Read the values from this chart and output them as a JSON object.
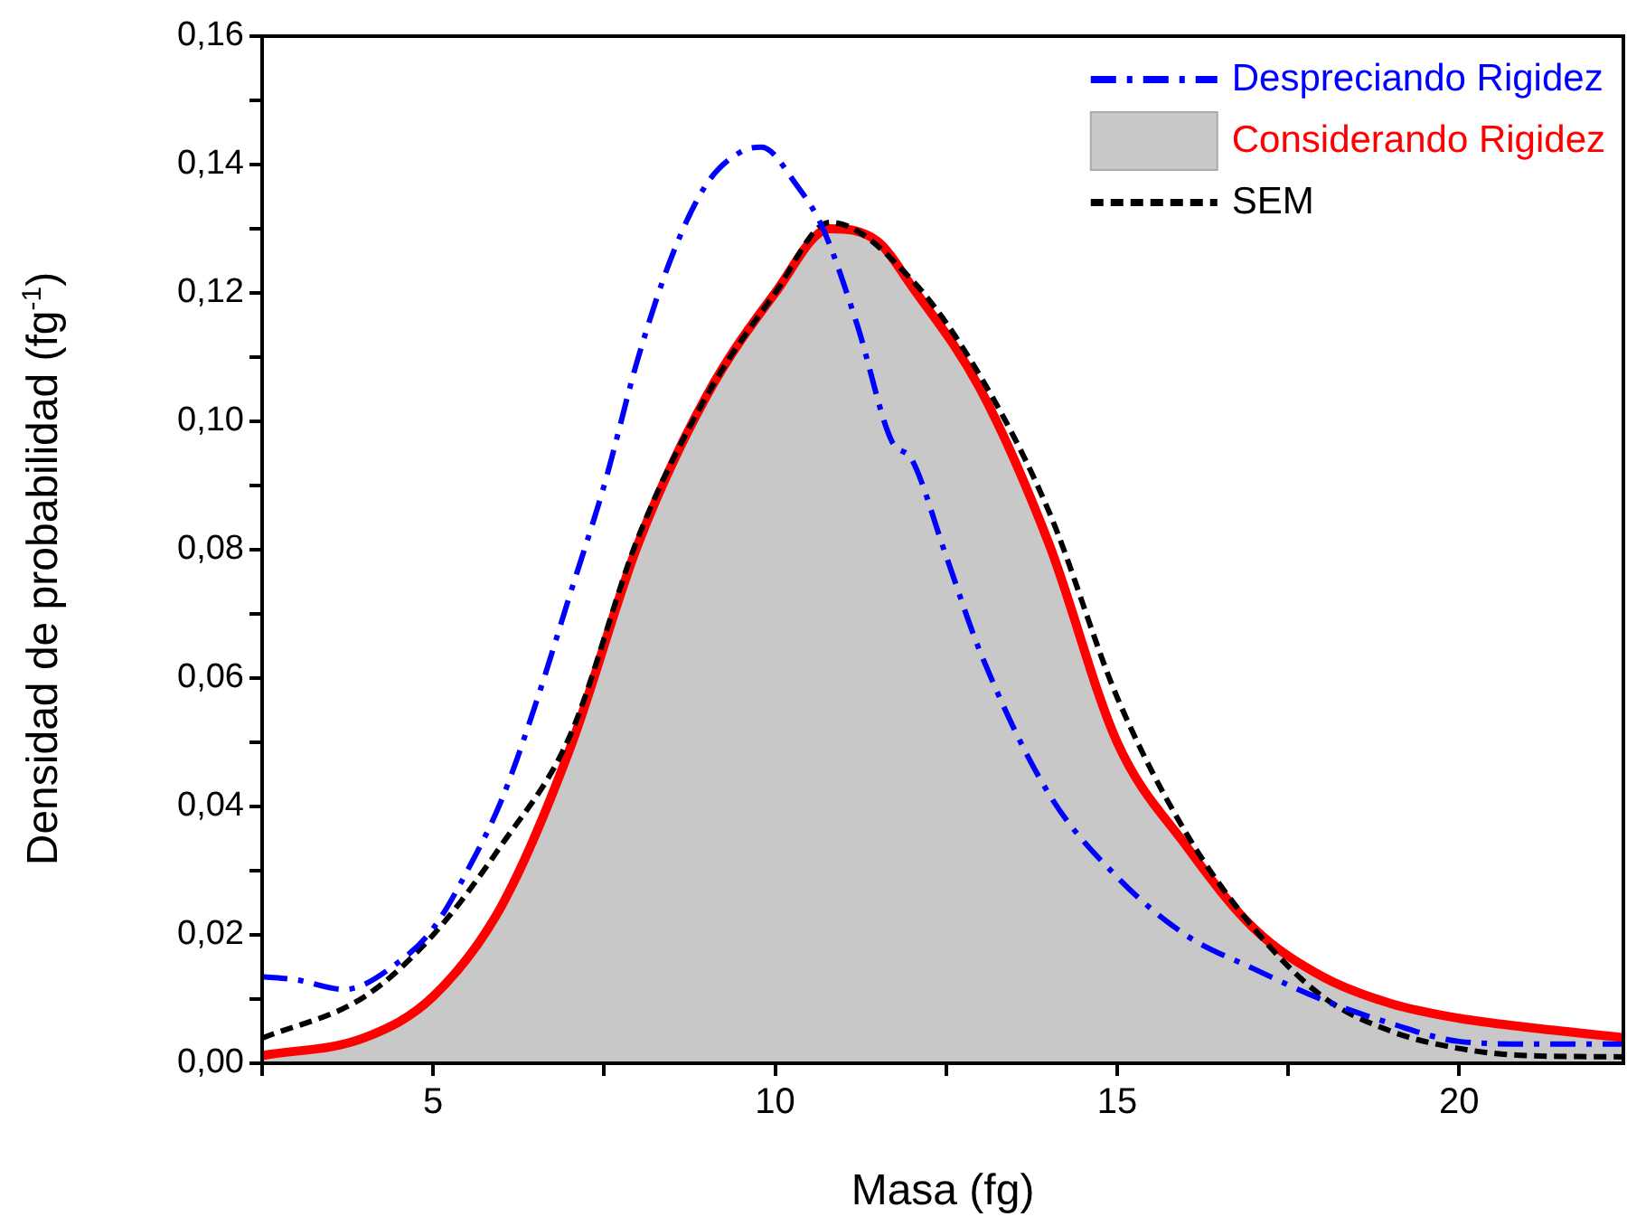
{
  "chart_data": {
    "type": "line",
    "xlabel": "Masa (fg)",
    "ylabel": "Densidad de probabilidad (fg$^{-1}$)",
    "legend": "top right",
    "xlim": [
      2.5,
      22.4
    ],
    "ylim": [
      0,
      0.16
    ],
    "xticks": [
      {
        "value": 2.5,
        "label": null
      },
      {
        "value": 5,
        "label": "5"
      },
      {
        "value": 7.5,
        "label": null
      },
      {
        "value": 10,
        "label": "10"
      },
      {
        "value": 12.5,
        "label": null
      },
      {
        "value": 15,
        "label": "15"
      },
      {
        "value": 17.5,
        "label": null
      },
      {
        "value": 20,
        "label": "20"
      }
    ],
    "yticks": [
      {
        "value": 0,
        "label": "0,00"
      },
      {
        "value": 0.01,
        "label": null
      },
      {
        "value": 0.02,
        "label": "0,02"
      },
      {
        "value": 0.03,
        "label": null
      },
      {
        "value": 0.04,
        "label": "0,04"
      },
      {
        "value": 0.05,
        "label": null
      },
      {
        "value": 0.06,
        "label": "0,06"
      },
      {
        "value": 0.07,
        "label": null
      },
      {
        "value": 0.08,
        "label": "0,08"
      },
      {
        "value": 0.09,
        "label": null
      },
      {
        "value": 0.1,
        "label": "0,10"
      },
      {
        "value": 0.11,
        "label": null
      },
      {
        "value": 0.12,
        "label": "0,12"
      },
      {
        "value": 0.13,
        "label": null
      },
      {
        "value": 0.14,
        "label": "0,14"
      },
      {
        "value": 0.15,
        "label": null
      },
      {
        "value": 0.16,
        "label": "0,16"
      }
    ],
    "series": [
      {
        "name": "Considerando Rigidez",
        "type": "area",
        "color": "#ff0000",
        "line_style": "solid",
        "x": [
          2.5,
          4,
          5,
          6,
          7,
          8,
          9,
          10,
          10.8,
          11.5,
          12,
          13,
          14,
          15,
          16,
          17,
          18,
          19,
          20,
          21,
          22.4
        ],
        "values": [
          0.0012,
          0.004,
          0.0104,
          0.0245,
          0.049,
          0.081,
          0.104,
          0.12,
          0.13,
          0.128,
          0.121,
          0.105,
          0.081,
          0.05,
          0.034,
          0.021,
          0.0135,
          0.0093,
          0.007,
          0.0056,
          0.004
        ]
      },
      {
        "name": "Despreciando Rigidez",
        "color": "#0000ff",
        "line_style": "dashdot",
        "x": [
          2.5,
          3,
          3.7,
          4.5,
          5,
          5.5,
          6,
          6.5,
          7,
          7.5,
          8,
          8.5,
          9,
          9.5,
          9.8,
          10.3,
          10.7,
          11.2,
          11.7,
          12,
          12.5,
          13,
          14,
          15,
          16,
          17,
          18,
          19,
          20,
          21,
          22.4
        ],
        "values": [
          0.0135,
          0.013,
          0.0115,
          0.0158,
          0.021,
          0.03,
          0.041,
          0.056,
          0.073,
          0.09,
          0.11,
          0.126,
          0.137,
          0.142,
          0.1427,
          0.137,
          0.13,
          0.115,
          0.097,
          0.094,
          0.079,
          0.064,
          0.042,
          0.029,
          0.02,
          0.0147,
          0.0099,
          0.0062,
          0.0034,
          0.003,
          0.003
        ]
      },
      {
        "name": "SEM",
        "color": "#000000",
        "line_style": "dashed",
        "x": [
          2.5,
          4,
          5,
          6,
          7,
          8,
          9,
          10,
          10.8,
          12,
          13,
          14,
          15,
          16,
          17,
          18,
          19,
          20,
          21,
          22.4
        ],
        "values": [
          0.0039,
          0.0104,
          0.02,
          0.034,
          0.051,
          0.082,
          0.104,
          0.12,
          0.131,
          0.122,
          0.107,
          0.086,
          0.057,
          0.036,
          0.021,
          0.0104,
          0.005,
          0.0023,
          0.0012,
          0.001
        ]
      }
    ]
  }
}
